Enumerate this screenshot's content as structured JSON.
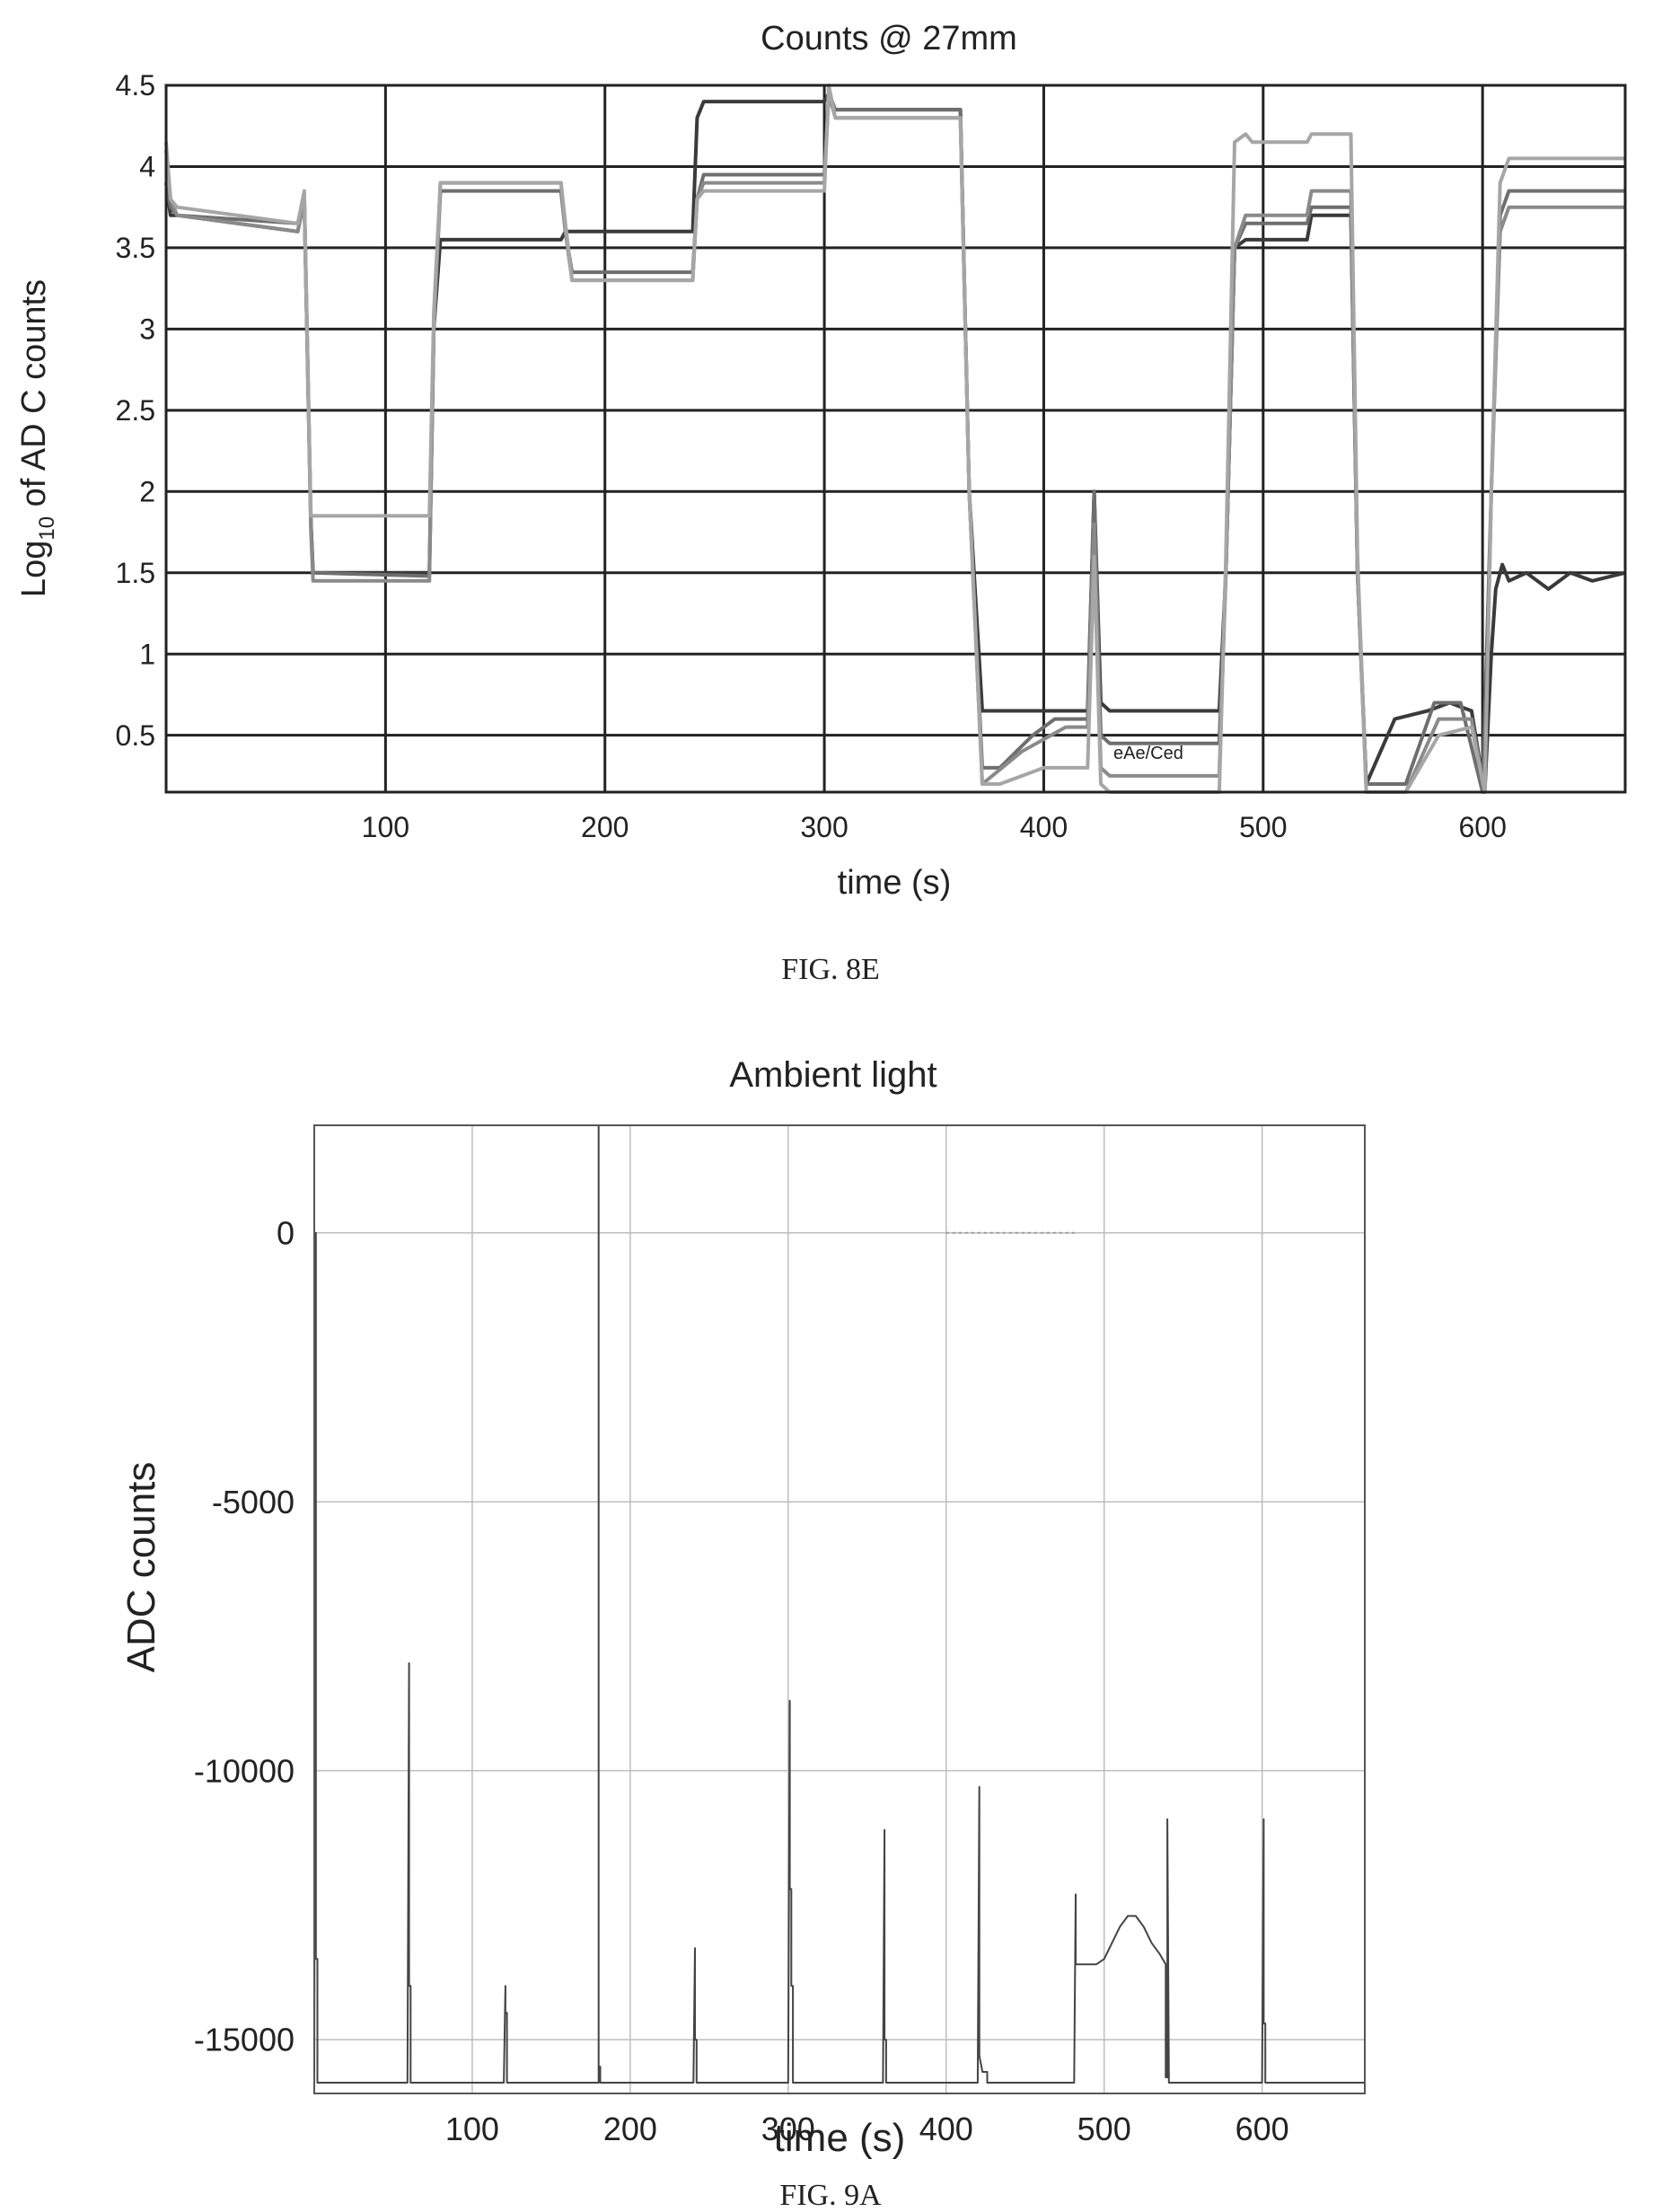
{
  "chart_data": [
    {
      "type": "line",
      "title": "Counts @ 27mm",
      "ylabel_main": "Log",
      "ylabel_sub": "10",
      "ylabel_rest": " of AD C counts",
      "xlabel": "time (s)",
      "xlim": [
        0,
        665
      ],
      "ylim": [
        0.15,
        4.5
      ],
      "xticks": [
        100,
        200,
        300,
        400,
        500,
        600
      ],
      "yticks": [
        0.5,
        1,
        1.5,
        2,
        2.5,
        3,
        3.5,
        4,
        4.5
      ],
      "ytick_labels": [
        "0.5",
        "1",
        "1.5",
        "2",
        "2.5",
        "3",
        "3.5",
        "4",
        "4.5"
      ],
      "grid": true,
      "inline_label": "eAe/Ced",
      "series": [
        {
          "color": "#3a3a3a",
          "x": [
            0,
            2,
            5,
            60,
            63,
            66,
            67,
            120,
            122,
            125,
            180,
            182,
            185,
            240,
            242,
            245,
            300,
            302,
            305,
            362,
            366,
            372,
            380,
            400,
            420,
            423,
            426,
            430,
            480,
            483,
            487,
            492,
            495,
            520,
            522,
            540,
            543,
            547,
            560,
            575,
            585,
            595,
            601,
            604,
            606,
            609,
            612,
            620,
            630,
            640,
            650,
            665
          ],
          "y": [
            3.9,
            3.7,
            3.7,
            3.6,
            3.8,
            1.8,
            1.5,
            1.5,
            3.0,
            3.55,
            3.55,
            3.6,
            3.6,
            3.6,
            4.3,
            4.4,
            4.4,
            4.45,
            4.35,
            4.35,
            2.0,
            0.65,
            0.65,
            0.65,
            0.65,
            2.0,
            0.7,
            0.65,
            0.65,
            1.5,
            3.5,
            3.55,
            3.55,
            3.55,
            3.7,
            3.7,
            1.5,
            0.2,
            0.6,
            0.65,
            0.7,
            0.65,
            0.15,
            1.0,
            1.4,
            1.55,
            1.45,
            1.5,
            1.4,
            1.5,
            1.45,
            1.5
          ]
        },
        {
          "color": "#6e6e6e",
          "x": [
            0,
            2,
            5,
            60,
            63,
            66,
            67,
            120,
            122,
            125,
            180,
            182,
            185,
            240,
            242,
            245,
            300,
            302,
            305,
            362,
            366,
            372,
            380,
            395,
            405,
            420,
            423,
            426,
            430,
            480,
            483,
            487,
            492,
            495,
            520,
            522,
            540,
            543,
            547,
            565,
            578,
            590,
            600,
            604,
            608,
            612,
            665
          ],
          "y": [
            3.9,
            3.75,
            3.7,
            3.65,
            3.8,
            1.8,
            1.5,
            1.48,
            3.0,
            3.85,
            3.85,
            3.6,
            3.35,
            3.35,
            3.8,
            3.95,
            3.95,
            4.45,
            4.35,
            4.35,
            2.0,
            0.3,
            0.3,
            0.5,
            0.6,
            0.6,
            2.0,
            0.5,
            0.45,
            0.45,
            1.5,
            3.5,
            3.65,
            3.65,
            3.65,
            3.75,
            3.75,
            1.5,
            0.2,
            0.2,
            0.7,
            0.7,
            0.15,
            2.0,
            3.7,
            3.85,
            3.85
          ]
        },
        {
          "color": "#8a8a8a",
          "x": [
            0,
            2,
            5,
            60,
            63,
            66,
            67,
            120,
            122,
            125,
            180,
            182,
            185,
            240,
            242,
            245,
            300,
            302,
            305,
            362,
            366,
            372,
            390,
            410,
            420,
            423,
            426,
            430,
            480,
            483,
            487,
            492,
            495,
            520,
            522,
            540,
            543,
            547,
            565,
            580,
            595,
            601,
            604,
            608,
            612,
            665
          ],
          "y": [
            4.1,
            3.8,
            3.7,
            3.6,
            3.8,
            1.75,
            1.45,
            1.45,
            3.0,
            3.9,
            3.9,
            3.6,
            3.3,
            3.3,
            3.8,
            3.9,
            3.9,
            4.45,
            4.3,
            4.3,
            2.0,
            0.2,
            0.4,
            0.55,
            0.55,
            1.8,
            0.3,
            0.25,
            0.25,
            1.5,
            3.5,
            3.7,
            3.7,
            3.7,
            3.85,
            3.85,
            1.5,
            0.15,
            0.15,
            0.6,
            0.6,
            0.15,
            2.0,
            3.6,
            3.75,
            3.75
          ]
        },
        {
          "color": "#a6a6a6",
          "x": [
            0,
            2,
            5,
            60,
            63,
            66,
            67,
            120,
            122,
            125,
            180,
            182,
            185,
            240,
            242,
            245,
            300,
            302,
            305,
            362,
            366,
            372,
            380,
            400,
            420,
            423,
            426,
            430,
            480,
            483,
            487,
            492,
            495,
            520,
            522,
            540,
            543,
            547,
            565,
            580,
            595,
            601,
            604,
            608,
            612,
            665
          ],
          "y": [
            4.15,
            3.8,
            3.75,
            3.65,
            3.85,
            1.85,
            1.85,
            1.85,
            3.1,
            3.9,
            3.9,
            3.65,
            3.3,
            3.3,
            3.8,
            3.85,
            3.85,
            4.5,
            4.3,
            4.3,
            2.0,
            0.2,
            0.2,
            0.3,
            0.3,
            1.6,
            0.2,
            0.15,
            0.15,
            1.6,
            4.15,
            4.2,
            4.15,
            4.15,
            4.2,
            4.2,
            1.6,
            0.15,
            0.15,
            0.5,
            0.55,
            0.15,
            2.0,
            3.9,
            4.05,
            4.05
          ]
        }
      ]
    },
    {
      "type": "line",
      "title": "Ambient light",
      "xlabel": "time (s)",
      "ylabel": "ADC counts",
      "xlim": [
        0,
        665
      ],
      "ylim": [
        -16000,
        2000
      ],
      "xticks": [
        100,
        200,
        300,
        400,
        500,
        600
      ],
      "yticks": [
        0,
        -5000,
        -10000,
        -15000
      ],
      "ytick_labels": [
        "0",
        "-5000",
        "-10000",
        "-15000"
      ],
      "grid": true,
      "series": [
        {
          "color": "#444444",
          "x": [
            0,
            1,
            1,
            2,
            2,
            59,
            60,
            60,
            61,
            61,
            120,
            121,
            121,
            122,
            122,
            180,
            180,
            180,
            181,
            181,
            240,
            241,
            241,
            242,
            242,
            300,
            301,
            301,
            302,
            302,
            303,
            303,
            360,
            361,
            361,
            362,
            362,
            420,
            421,
            421,
            423,
            426,
            426,
            481,
            482,
            482,
            484,
            484,
            495,
            500,
            505,
            510,
            515,
            520,
            525,
            530,
            535,
            539,
            539,
            540,
            540,
            541,
            541,
            600,
            601,
            601,
            602,
            602,
            665
          ],
          "y": [
            -15800,
            0,
            -13500,
            -13500,
            -15800,
            -15800,
            -8000,
            -14000,
            -14000,
            -15800,
            -15800,
            -14000,
            -14500,
            -14500,
            -15800,
            -15800,
            2000,
            -15500,
            -15500,
            -15800,
            -15800,
            -13300,
            -15000,
            -15000,
            -15800,
            -15800,
            -8700,
            -12200,
            -12200,
            -14000,
            -14000,
            -15800,
            -15800,
            -11100,
            -15000,
            -15000,
            -15800,
            -15800,
            -10300,
            -15300,
            -15600,
            -15600,
            -15800,
            -15800,
            -12300,
            -13600,
            -13600,
            -13600,
            -13600,
            -13500,
            -13200,
            -12900,
            -12700,
            -12700,
            -12900,
            -13200,
            -13400,
            -13600,
            -15700,
            -15700,
            -10900,
            -15700,
            -15800,
            -15800,
            -10900,
            -14700,
            -14700,
            -15800,
            -15800
          ]
        },
        {
          "color": "#9a9a9a",
          "style": "dotted",
          "x": [
            400,
            482
          ],
          "y": [
            0,
            0
          ]
        }
      ]
    }
  ],
  "captions": [
    "FIG. 8E",
    "FIG. 9A"
  ]
}
